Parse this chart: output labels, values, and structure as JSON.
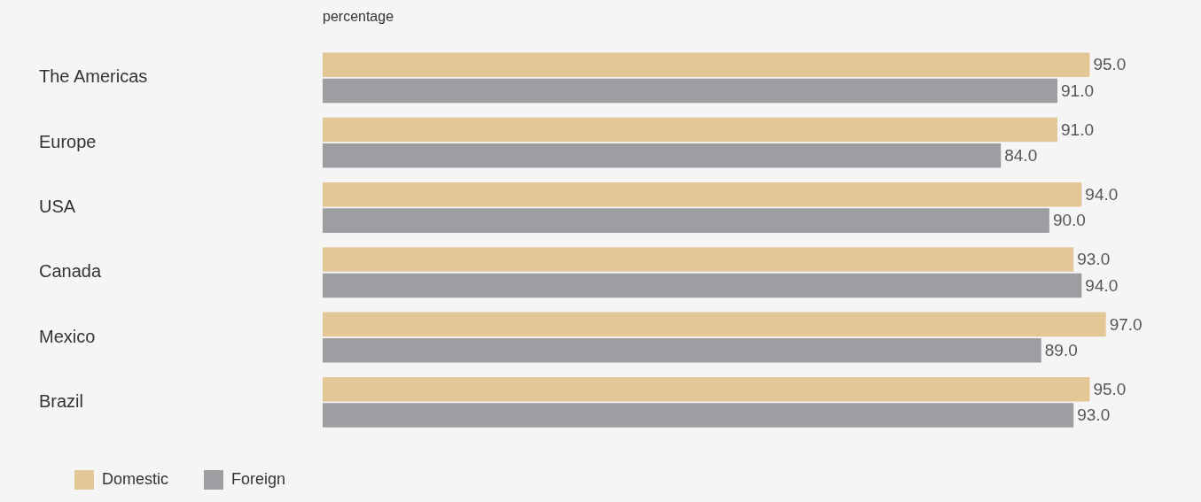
{
  "chart_data": {
    "type": "bar",
    "orientation": "horizontal",
    "xlabel": "percentage",
    "categories": [
      "The Americas",
      "Europe",
      "USA",
      "Canada",
      "Mexico",
      "Brazil"
    ],
    "series": [
      {
        "name": "Domestic",
        "color": "#e4c796",
        "values": [
          95,
          91,
          94,
          93,
          97,
          95
        ],
        "value_labels": [
          "95.0",
          "91.0",
          "94.0",
          "93.0",
          "97.0",
          "95.0"
        ]
      },
      {
        "name": "Foreign",
        "color": "#9d9ea2",
        "values": [
          91,
          84,
          90,
          94,
          89,
          93
        ],
        "value_labels": [
          "91.0",
          "84.0",
          "90.0",
          "94.0",
          "89.0",
          "93.0"
        ]
      }
    ],
    "tick_labels": "y",
    "grid": false,
    "legend": "bottom left"
  }
}
